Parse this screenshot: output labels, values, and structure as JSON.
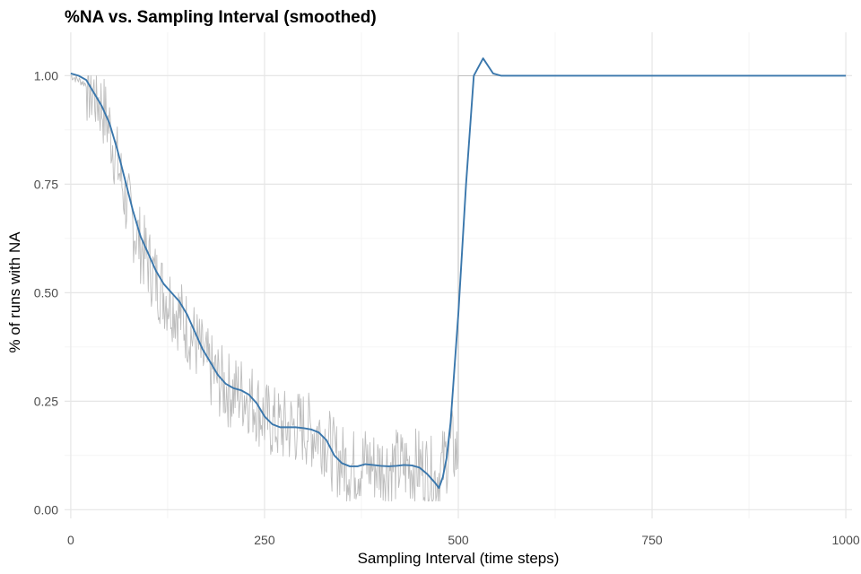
{
  "chart_data": {
    "type": "line",
    "title": "%NA vs. Sampling Interval (smoothed)",
    "xlabel": "Sampling Interval (time steps)",
    "ylabel": "% of runs with NA",
    "xlim": [
      -8,
      1008
    ],
    "ylim": [
      -0.02,
      1.1
    ],
    "x_ticks": [
      0,
      250,
      500,
      750,
      1000
    ],
    "x_tick_labels": [
      "0",
      "250",
      "500",
      "750",
      "1000"
    ],
    "y_ticks": [
      0,
      0.25,
      0.5,
      0.75,
      1.0
    ],
    "y_tick_labels": [
      "0.00",
      "0.25",
      "0.50",
      "0.75",
      "1.00"
    ],
    "grid": true,
    "legend": "none",
    "series": [
      {
        "style": "raw",
        "color": "#bdbdbd",
        "points": [
          [
            0,
            1.0
          ],
          [
            10,
            0.99
          ],
          [
            20,
            0.98
          ],
          [
            30,
            0.96
          ],
          [
            40,
            0.93
          ],
          [
            50,
            0.88
          ],
          [
            60,
            0.8
          ],
          [
            70,
            0.72
          ],
          [
            80,
            0.66
          ],
          [
            90,
            0.61
          ],
          [
            100,
            0.57
          ],
          [
            110,
            0.53
          ],
          [
            120,
            0.5
          ],
          [
            130,
            0.48
          ],
          [
            140,
            0.45
          ],
          [
            150,
            0.42
          ],
          [
            160,
            0.39
          ],
          [
            170,
            0.35
          ],
          [
            180,
            0.32
          ],
          [
            190,
            0.3
          ],
          [
            200,
            0.28
          ],
          [
            210,
            0.27
          ],
          [
            220,
            0.27
          ],
          [
            230,
            0.26
          ],
          [
            240,
            0.24
          ],
          [
            250,
            0.21
          ],
          [
            260,
            0.2
          ],
          [
            270,
            0.19
          ],
          [
            280,
            0.19
          ],
          [
            290,
            0.19
          ],
          [
            300,
            0.19
          ],
          [
            310,
            0.18
          ],
          [
            320,
            0.18
          ],
          [
            330,
            0.16
          ],
          [
            340,
            0.12
          ],
          [
            350,
            0.11
          ],
          [
            360,
            0.1
          ],
          [
            370,
            0.1
          ],
          [
            380,
            0.11
          ],
          [
            390,
            0.1
          ],
          [
            400,
            0.1
          ],
          [
            410,
            0.1
          ],
          [
            420,
            0.1
          ],
          [
            430,
            0.1
          ],
          [
            440,
            0.1
          ],
          [
            450,
            0.1
          ],
          [
            460,
            0.09
          ],
          [
            470,
            0.07
          ],
          [
            480,
            0.1
          ],
          [
            490,
            0.15
          ],
          [
            500,
            0.12
          ],
          [
            500,
            1.0
          ],
          [
            1000,
            1.0
          ]
        ]
      },
      {
        "style": "smoothed",
        "color": "#3a77ac",
        "points": [
          [
            0,
            1.005
          ],
          [
            10,
            1.0
          ],
          [
            20,
            0.99
          ],
          [
            30,
            0.96
          ],
          [
            40,
            0.93
          ],
          [
            50,
            0.89
          ],
          [
            60,
            0.83
          ],
          [
            70,
            0.76
          ],
          [
            80,
            0.69
          ],
          [
            90,
            0.63
          ],
          [
            100,
            0.59
          ],
          [
            110,
            0.55
          ],
          [
            120,
            0.52
          ],
          [
            130,
            0.5
          ],
          [
            140,
            0.48
          ],
          [
            150,
            0.45
          ],
          [
            160,
            0.41
          ],
          [
            170,
            0.37
          ],
          [
            180,
            0.34
          ],
          [
            190,
            0.31
          ],
          [
            200,
            0.29
          ],
          [
            210,
            0.28
          ],
          [
            220,
            0.275
          ],
          [
            230,
            0.265
          ],
          [
            240,
            0.245
          ],
          [
            250,
            0.215
          ],
          [
            260,
            0.197
          ],
          [
            270,
            0.19
          ],
          [
            280,
            0.19
          ],
          [
            290,
            0.19
          ],
          [
            300,
            0.188
          ],
          [
            310,
            0.185
          ],
          [
            320,
            0.178
          ],
          [
            330,
            0.16
          ],
          [
            340,
            0.125
          ],
          [
            350,
            0.107
          ],
          [
            360,
            0.1
          ],
          [
            370,
            0.1
          ],
          [
            380,
            0.105
          ],
          [
            390,
            0.103
          ],
          [
            400,
            0.101
          ],
          [
            410,
            0.1
          ],
          [
            420,
            0.101
          ],
          [
            430,
            0.103
          ],
          [
            440,
            0.102
          ],
          [
            450,
            0.097
          ],
          [
            460,
            0.082
          ],
          [
            470,
            0.062
          ],
          [
            475,
            0.05
          ],
          [
            480,
            0.075
          ],
          [
            485,
            0.12
          ],
          [
            490,
            0.2
          ],
          [
            500,
            0.45
          ],
          [
            510,
            0.75
          ],
          [
            520,
            1.0
          ],
          [
            532,
            1.04
          ],
          [
            545,
            1.005
          ],
          [
            555,
            1.0
          ],
          [
            600,
            1.0
          ],
          [
            700,
            1.0
          ],
          [
            800,
            1.0
          ],
          [
            900,
            1.0
          ],
          [
            1000,
            1.0
          ]
        ]
      }
    ]
  }
}
